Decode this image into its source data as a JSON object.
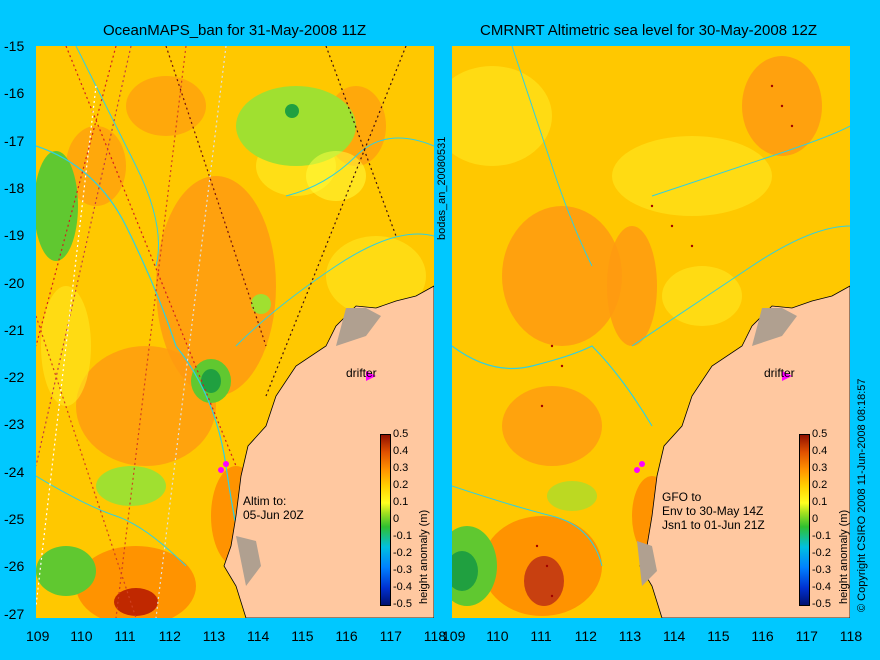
{
  "left_panel": {
    "title": "OceanMAPS_ban for 31-May-2008 11Z",
    "annotation": "Altim to:\n05-Jun 20Z",
    "drifter_label": "drifter",
    "colorbar_label": "height anomaly (m)"
  },
  "right_panel": {
    "title": "CMRNRT Altimetric sea level  for 30-May-2008 12Z",
    "annotation": "GFO to\nEnv to 30-May 14Z\nJsn1 to 01-Jun 21Z",
    "drifter_label": "drifter",
    "colorbar_label": "height anomaly (m)"
  },
  "side_text": {
    "file_id": "bodas_an_20080531",
    "copyright": "© Copyright CSIRO 2008  11-Jun-2008 08:18:57"
  },
  "y_ticks": [
    "-15",
    "-16",
    "-17",
    "-18",
    "-19",
    "-20",
    "-21",
    "-22",
    "-23",
    "-24",
    "-25",
    "-26",
    "-27"
  ],
  "x_ticks": [
    "109",
    "110",
    "111",
    "112",
    "113",
    "114",
    "115",
    "116",
    "117",
    "118"
  ],
  "colorbar_ticks": [
    "0.5",
    "0.4",
    "0.3",
    "0.2",
    "0.1",
    "0",
    "-0.1",
    "-0.2",
    "-0.3",
    "-0.4",
    "-0.5"
  ],
  "colors": {
    "background": "#00c8ff",
    "land": "#ffc8a0",
    "ocean_base": "#ffc800",
    "drifter_marker": "#ff00ff"
  }
}
